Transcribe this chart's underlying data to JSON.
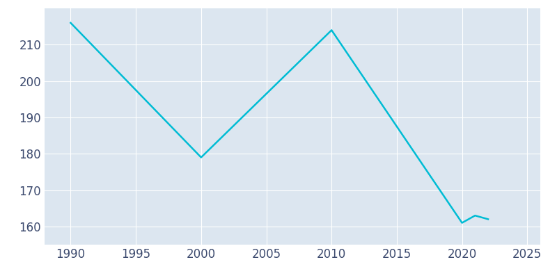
{
  "years": [
    1990,
    2000,
    2010,
    2020,
    2021,
    2022
  ],
  "population": [
    216,
    179,
    214,
    161,
    163,
    162
  ],
  "line_color": "#00BCD4",
  "bg_outer": "#ffffff",
  "bg_inner": "#dce6f0",
  "grid_color": "#ffffff",
  "xlim": [
    1988,
    2026
  ],
  "ylim": [
    155,
    220
  ],
  "xticks": [
    1990,
    1995,
    2000,
    2005,
    2010,
    2015,
    2020,
    2025
  ],
  "yticks": [
    160,
    170,
    180,
    190,
    200,
    210
  ],
  "linewidth": 1.8,
  "tick_color": "#3c4a6e",
  "tick_fontsize": 12
}
